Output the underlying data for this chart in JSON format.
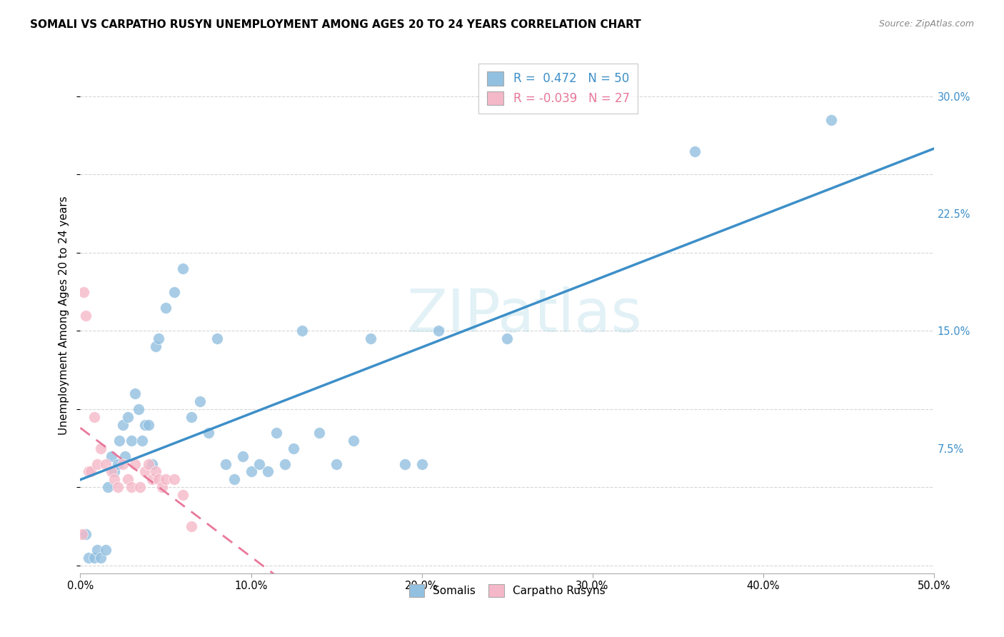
{
  "title": "SOMALI VS CARPATHO RUSYN UNEMPLOYMENT AMONG AGES 20 TO 24 YEARS CORRELATION CHART",
  "source": "Source: ZipAtlas.com",
  "ylabel": "Unemployment Among Ages 20 to 24 years",
  "xlim": [
    0.0,
    0.5
  ],
  "ylim": [
    -0.005,
    0.325
  ],
  "xticks": [
    0.0,
    0.1,
    0.2,
    0.3,
    0.4,
    0.5
  ],
  "xticklabels": [
    "0.0%",
    "10.0%",
    "20.0%",
    "30.0%",
    "40.0%",
    "50.0%"
  ],
  "yticks_right": [
    0.0,
    0.075,
    0.15,
    0.225,
    0.3
  ],
  "yticklabels_right": [
    "",
    "7.5%",
    "15.0%",
    "22.5%",
    "30.0%"
  ],
  "somali_R": 0.472,
  "somali_N": 50,
  "carpatho_R": -0.039,
  "carpatho_N": 27,
  "somali_color": "#92c0e0",
  "carpatho_color": "#f5b8c8",
  "somali_line_color": "#3d8fc8",
  "carpatho_line_color": "#e8789a",
  "background_color": "#ffffff",
  "grid_color": "#cccccc",
  "somali_x": [
    0.003,
    0.005,
    0.008,
    0.01,
    0.012,
    0.015,
    0.016,
    0.018,
    0.02,
    0.022,
    0.023,
    0.025,
    0.026,
    0.028,
    0.03,
    0.032,
    0.034,
    0.036,
    0.038,
    0.04,
    0.042,
    0.044,
    0.046,
    0.05,
    0.055,
    0.06,
    0.065,
    0.07,
    0.075,
    0.08,
    0.085,
    0.09,
    0.095,
    0.1,
    0.105,
    0.11,
    0.115,
    0.12,
    0.125,
    0.13,
    0.14,
    0.15,
    0.16,
    0.17,
    0.19,
    0.2,
    0.21,
    0.25,
    0.36,
    0.44
  ],
  "somali_y": [
    0.02,
    0.005,
    0.005,
    0.01,
    0.005,
    0.01,
    0.05,
    0.07,
    0.06,
    0.065,
    0.08,
    0.09,
    0.07,
    0.095,
    0.08,
    0.11,
    0.1,
    0.08,
    0.09,
    0.09,
    0.065,
    0.14,
    0.145,
    0.165,
    0.175,
    0.19,
    0.095,
    0.105,
    0.085,
    0.145,
    0.065,
    0.055,
    0.07,
    0.06,
    0.065,
    0.06,
    0.085,
    0.065,
    0.075,
    0.15,
    0.085,
    0.065,
    0.08,
    0.145,
    0.065,
    0.065,
    0.15,
    0.145,
    0.265,
    0.285
  ],
  "carpatho_x": [
    0.001,
    0.002,
    0.003,
    0.005,
    0.006,
    0.008,
    0.01,
    0.012,
    0.015,
    0.018,
    0.02,
    0.022,
    0.025,
    0.028,
    0.03,
    0.032,
    0.035,
    0.038,
    0.04,
    0.042,
    0.044,
    0.046,
    0.048,
    0.05,
    0.055,
    0.06,
    0.065
  ],
  "carpatho_y": [
    0.02,
    0.175,
    0.16,
    0.06,
    0.06,
    0.095,
    0.065,
    0.075,
    0.065,
    0.06,
    0.055,
    0.05,
    0.065,
    0.055,
    0.05,
    0.065,
    0.05,
    0.06,
    0.065,
    0.055,
    0.06,
    0.055,
    0.05,
    0.055,
    0.055,
    0.045,
    0.025
  ],
  "watermark_text": "ZIPatlas",
  "watermark_fontsize": 60,
  "watermark_color": "#add8e6",
  "watermark_alpha": 0.35
}
